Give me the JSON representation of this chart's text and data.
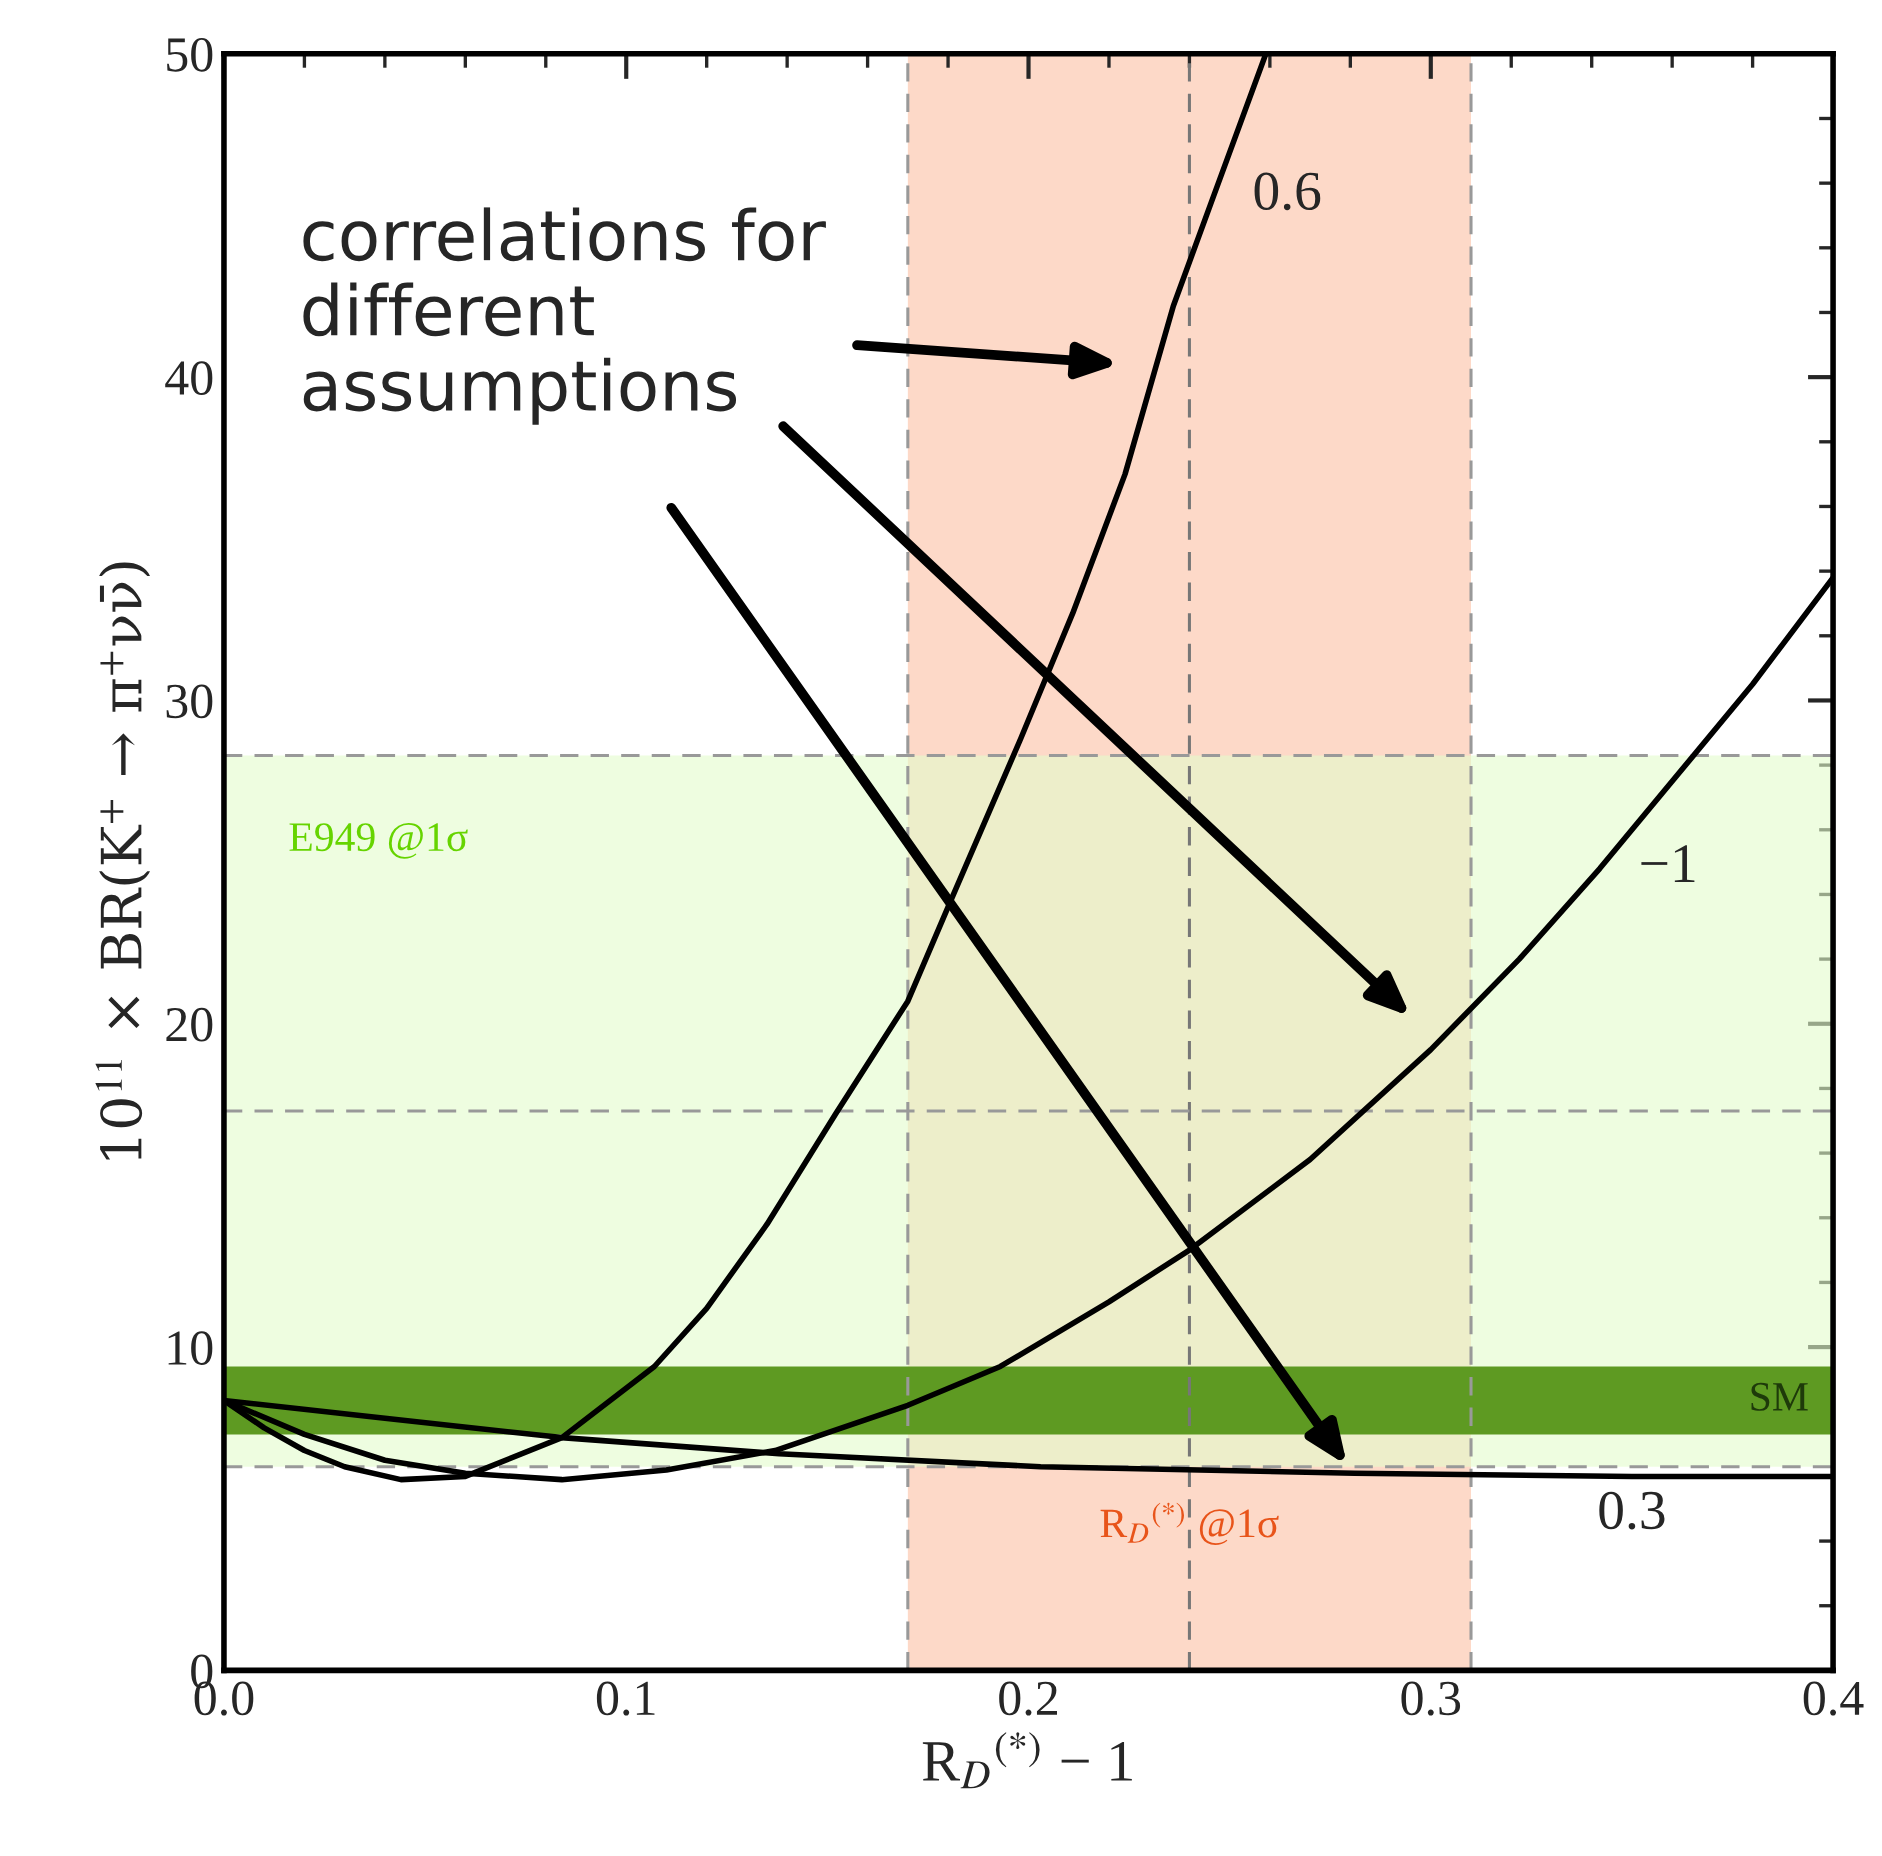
{
  "chart_data": {
    "type": "line",
    "xlabel": "R$_{D}$$^{(*)}$ − 1",
    "ylabel": "10$^{11}$ × BR(K$^{+}$ → π$^{+}$νν̄)",
    "xlim": [
      0,
      0.4
    ],
    "ylim": [
      0,
      50
    ],
    "xticks": [
      {
        "value": 0,
        "label": "0.0"
      },
      {
        "value": 0.1,
        "label": "0.1"
      },
      {
        "value": 0.2,
        "label": "0.2"
      },
      {
        "value": 0.3,
        "label": "0.3"
      },
      {
        "value": 0.4,
        "label": "0.4"
      }
    ],
    "yticks": [
      0,
      10,
      20,
      30,
      40,
      50
    ],
    "grid": false,
    "legend": false,
    "marker": "none",
    "line_style": "solid",
    "series": [
      {
        "name": "0.6",
        "color": "#000000",
        "x": [
          0,
          0.01,
          0.02,
          0.03,
          0.044,
          0.06,
          0.084,
          0.107,
          0.12,
          0.135,
          0.152,
          0.17,
          0.181,
          0.198,
          0.211,
          0.224,
          0.236,
          0.246,
          0.259
        ],
        "values": [
          8.35,
          7.5,
          6.8,
          6.3,
          5.9,
          6.0,
          7.2,
          9.4,
          11.2,
          13.8,
          17.2,
          20.7,
          23.9,
          28.8,
          32.7,
          37.0,
          42.2,
          45.6,
          50.0
        ]
      },
      {
        "name": "−1",
        "color": "#000000",
        "x": [
          0,
          0.02,
          0.04,
          0.06,
          0.084,
          0.11,
          0.137,
          0.17,
          0.193,
          0.22,
          0.24,
          0.27,
          0.3,
          0.322,
          0.342,
          0.36,
          0.38,
          0.4
        ],
        "values": [
          8.35,
          7.3,
          6.5,
          6.1,
          5.9,
          6.2,
          6.8,
          8.2,
          9.4,
          11.4,
          13.0,
          15.8,
          19.2,
          22.0,
          24.8,
          27.5,
          30.5,
          33.8
        ]
      },
      {
        "name": "0.3",
        "color": "#000000",
        "x": [
          0,
          0.04,
          0.084,
          0.138,
          0.203,
          0.281,
          0.35,
          0.4
        ],
        "values": [
          8.35,
          7.8,
          7.2,
          6.7,
          6.3,
          6.1,
          6.0,
          6.0
        ]
      }
    ],
    "bands": [
      {
        "axis": "x",
        "from": 0.17,
        "to": 0.31,
        "label": "R$_{D}$$^{(*)}$ @1σ",
        "color": "#fdd9c8"
      },
      {
        "axis": "y",
        "from": 6.3,
        "to": 28.3,
        "label": "E949 @1σ",
        "color": "#e2fccb"
      },
      {
        "axis": "y",
        "from": 7.3,
        "to": 9.4,
        "label": "SM",
        "color": "#5e9a22"
      }
    ],
    "ref_lines": [
      {
        "axis": "x",
        "value": 0.17,
        "color": "#999999",
        "line_style": "dashed"
      },
      {
        "axis": "x",
        "value": 0.24,
        "color": "#777777",
        "line_style": "dashed"
      },
      {
        "axis": "x",
        "value": 0.31,
        "color": "#999999",
        "line_style": "dashed"
      },
      {
        "axis": "y",
        "value": 6.3,
        "color": "#999999",
        "line_style": "dashed"
      },
      {
        "axis": "y",
        "value": 17.3,
        "color": "#999999",
        "line_style": "dashed"
      },
      {
        "axis": "y",
        "value": 28.3,
        "color": "#999999",
        "line_style": "dashed"
      }
    ],
    "annotations": [
      "correlations for\ndifferent\nassumptions"
    ]
  }
}
